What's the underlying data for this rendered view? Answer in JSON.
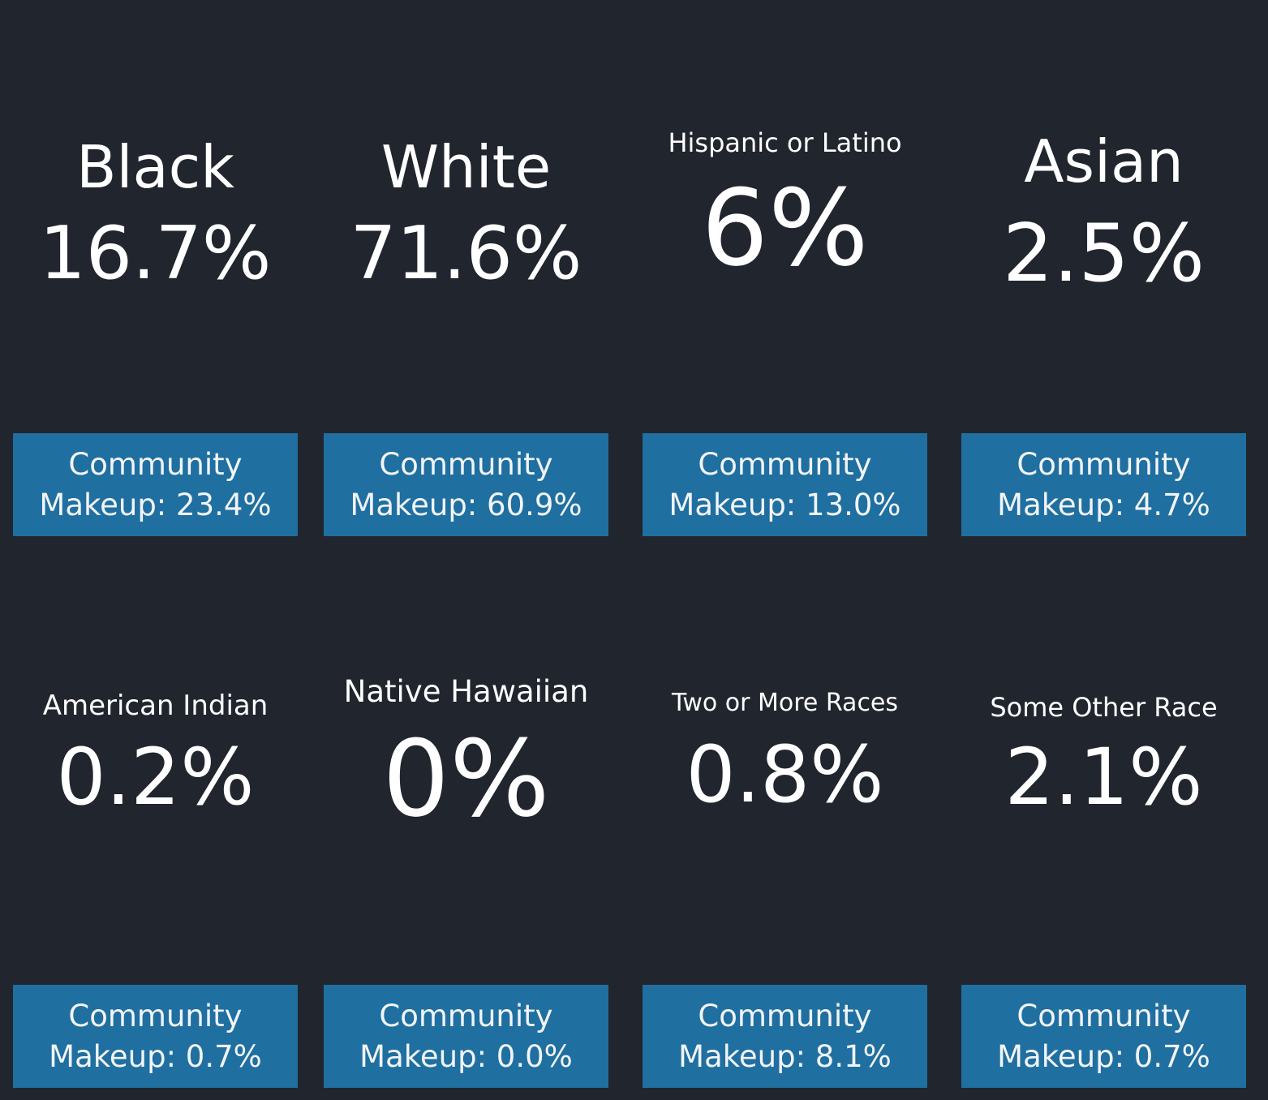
{
  "colors": {
    "background": "#21252e",
    "makeup_box": "#1f6fa1",
    "text": "#ffffff"
  },
  "cards": [
    {
      "label": "Black",
      "value": "16.7%",
      "makeup_line1": "Community",
      "makeup_line2": "Makeup: 23.4%"
    },
    {
      "label": "White",
      "value": "71.6%",
      "makeup_line1": "Community",
      "makeup_line2": "Makeup: 60.9%"
    },
    {
      "label": "Hispanic or Latino",
      "value": "6%",
      "makeup_line1": "Community",
      "makeup_line2": "Makeup: 13.0%"
    },
    {
      "label": "Asian",
      "value": "2.5%",
      "makeup_line1": "Community",
      "makeup_line2": "Makeup: 4.7%"
    },
    {
      "label": "American Indian",
      "value": "0.2%",
      "makeup_line1": "Community",
      "makeup_line2": "Makeup: 0.7%"
    },
    {
      "label": "Native Hawaiian",
      "value": "0%",
      "makeup_line1": "Community",
      "makeup_line2": "Makeup: 0.0%"
    },
    {
      "label": "Two or More Races",
      "value": "0.8%",
      "makeup_line1": "Community",
      "makeup_line2": "Makeup: 8.1%"
    },
    {
      "label": "Some Other Race",
      "value": "2.1%",
      "makeup_line1": "Community",
      "makeup_line2": "Makeup: 0.7%"
    }
  ]
}
